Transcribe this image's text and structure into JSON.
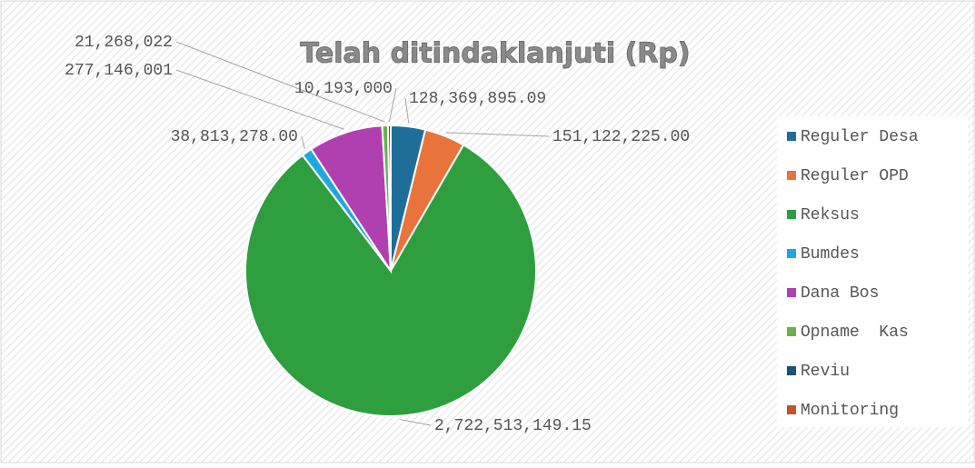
{
  "chart_data": {
    "type": "pie",
    "title": "Telah ditindaklanjuti (Rp)",
    "categories": [
      "Reguler Desa",
      "Reguler OPD",
      "Reksus",
      "Bumdes",
      "Dana Bos",
      "Opname  Kas",
      "Reviu",
      "Monitoring"
    ],
    "values": [
      128369895.09,
      151122225.0,
      2722513149.15,
      38813278.0,
      277146001,
      21268022,
      10193000,
      null
    ],
    "value_labels": [
      "128,369,895.09",
      "151,122,225.00",
      "2,722,513,149.15",
      "38,813,278.00",
      "277,146,001",
      "21,268,022",
      "10,193,000",
      null
    ],
    "colors": [
      "#1f6e9a",
      "#e8743b",
      "#2e9e3f",
      "#1ea8e0",
      "#b040b0",
      "#6ab04c",
      "#1a5276",
      "#c0562a"
    ],
    "legend": "right"
  }
}
